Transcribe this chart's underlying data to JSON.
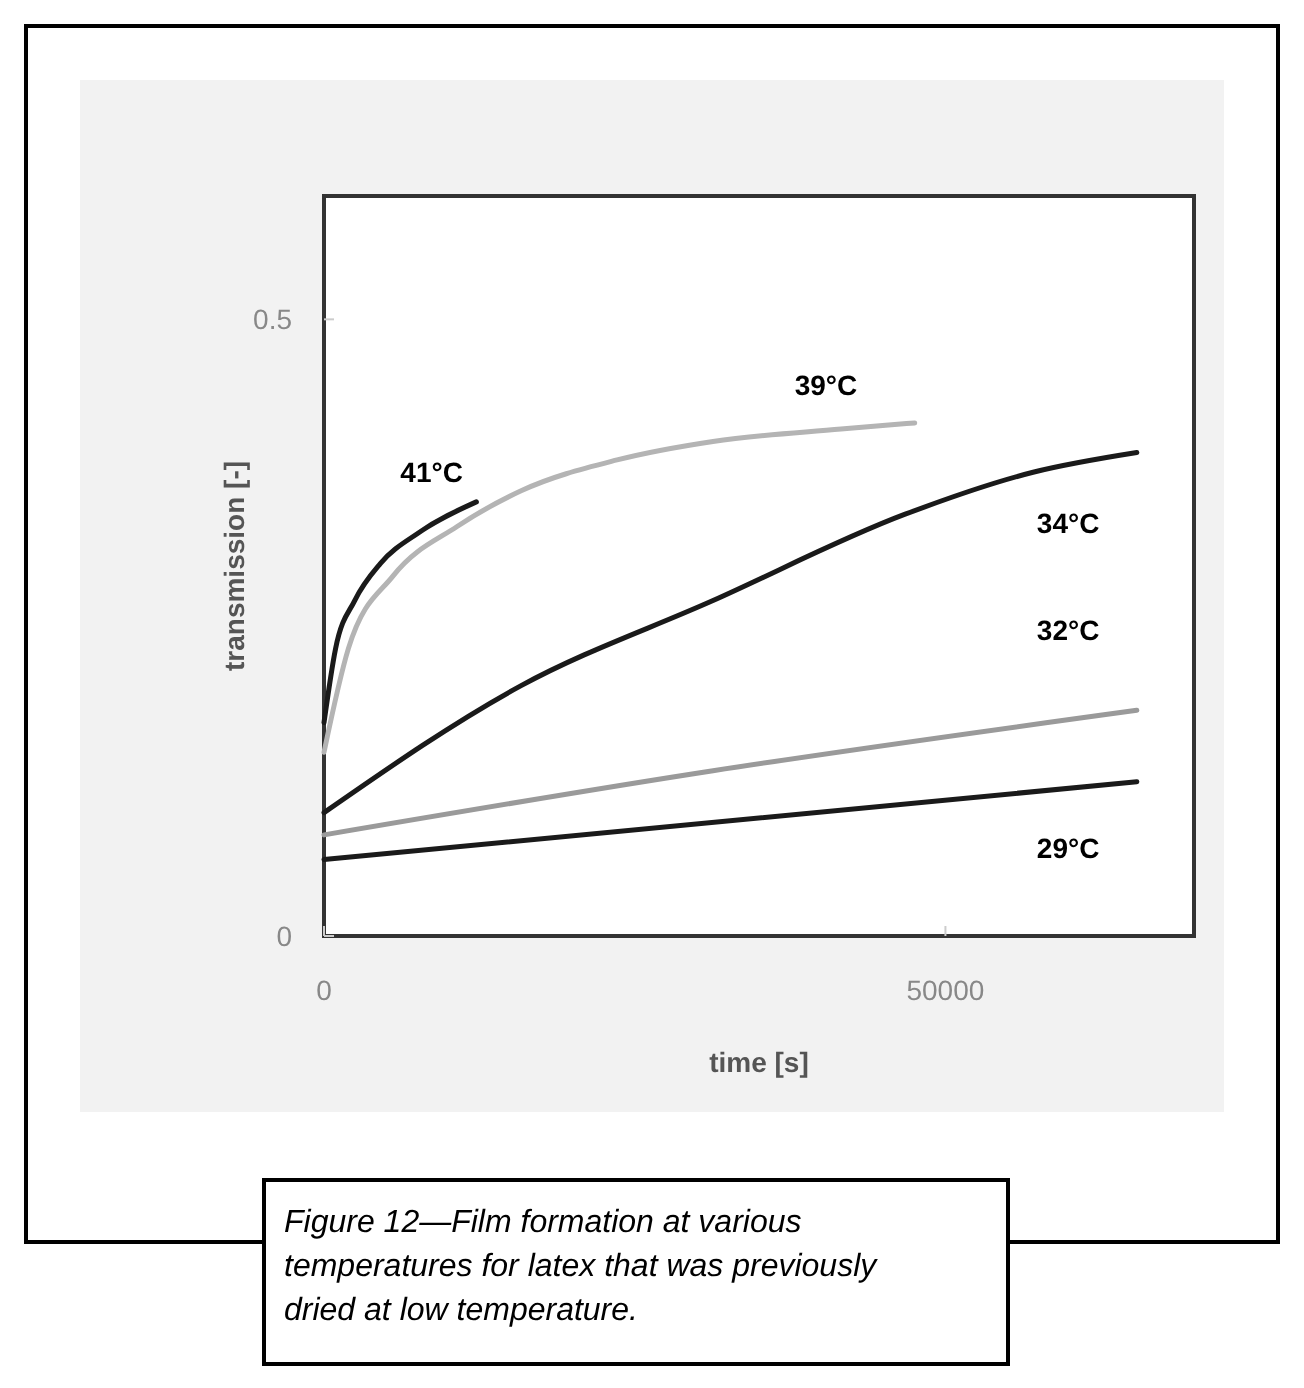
{
  "chart_data": {
    "type": "line",
    "xlabel": "time [s]",
    "ylabel": "transmission [-]",
    "xlim": [
      0,
      70000
    ],
    "xticks": [
      0,
      50000
    ],
    "ylim": [
      0,
      0.6
    ],
    "yticks": [
      0,
      0.5
    ],
    "grid": false,
    "series": [
      {
        "name": "41°C",
        "color": "#1a1a1a",
        "x": [
          0,
          930,
          2470,
          4530,
          7620,
          12260
        ],
        "values": [
          0.173,
          0.233,
          0.272,
          0.302,
          0.327,
          0.352
        ]
      },
      {
        "name": "39°C",
        "color": "#b4b4b4",
        "x": [
          0,
          1960,
          5560,
          10710,
          15860,
          23580,
          31300,
          41600,
          47530
        ],
        "values": [
          0.149,
          0.233,
          0.292,
          0.332,
          0.361,
          0.386,
          0.401,
          0.411,
          0.416
        ]
      },
      {
        "name": "34°C",
        "color": "#1a1a1a",
        "x": [
          0,
          15860,
          31300,
          46760,
          57050,
          65400
        ],
        "values": [
          0.1,
          0.203,
          0.272,
          0.342,
          0.376,
          0.392
        ]
      },
      {
        "name": "32°C",
        "color": "#9a9a9a",
        "x": [
          0,
          31300,
          65400
        ],
        "values": [
          0.082,
          0.134,
          0.183
        ]
      },
      {
        "name": "29°C",
        "color": "#1a1a1a",
        "x": [
          0,
          65400
        ],
        "values": [
          0.062,
          0.125
        ]
      }
    ],
    "annotations": [
      "Figure 12—Film formation at various temperatures for latex that was previously dried at low temperature."
    ]
  }
}
